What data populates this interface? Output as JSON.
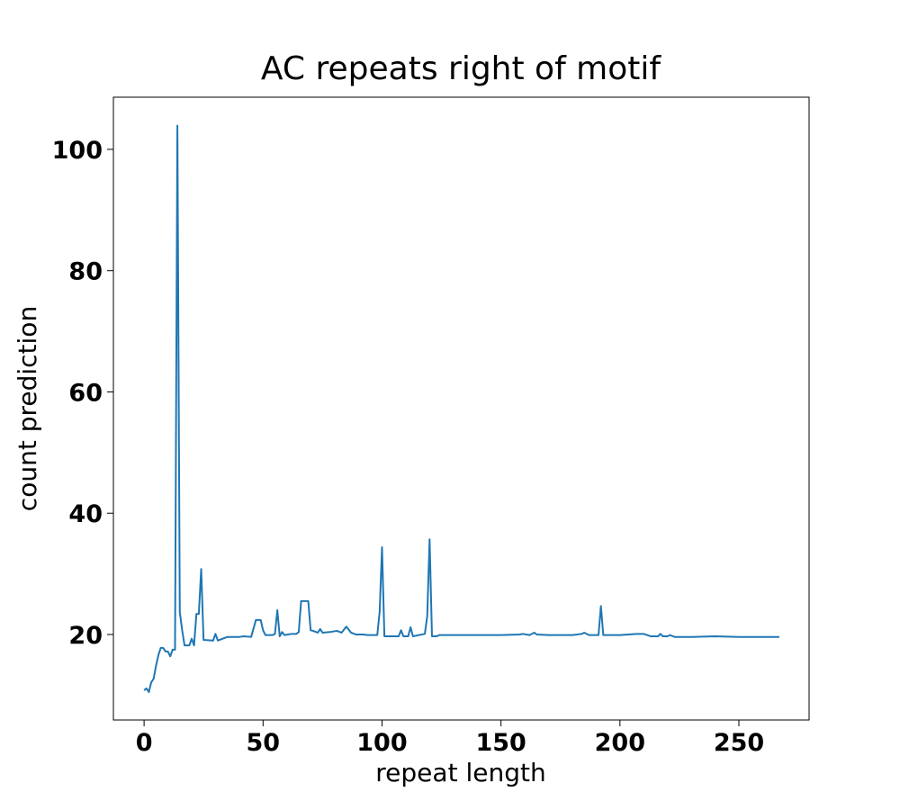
{
  "chart_data": {
    "type": "line",
    "title": "AC repeats right of motif",
    "x_label": "repeat length",
    "y_label": "count prediction",
    "x": [
      0,
      1,
      2,
      3,
      4,
      5,
      6,
      7,
      8,
      9,
      10,
      11,
      12,
      13,
      14,
      15,
      16,
      17,
      18,
      19,
      20,
      21,
      22,
      23,
      24,
      25,
      29,
      30,
      31,
      33,
      35,
      40,
      42,
      45,
      47,
      49,
      50,
      51,
      54,
      55,
      56,
      57,
      58,
      59,
      62,
      64,
      65,
      66,
      69,
      70,
      71,
      73,
      74,
      75,
      78,
      81,
      83,
      85,
      87,
      89,
      92,
      94,
      98,
      99,
      100,
      101,
      107,
      108,
      109,
      111,
      112,
      113,
      118,
      119,
      120,
      121,
      123,
      124,
      130,
      140,
      150,
      158,
      159,
      162,
      164,
      165,
      170,
      180,
      184,
      185,
      187,
      191,
      192,
      193,
      200,
      207,
      210,
      213,
      216,
      217,
      218,
      220,
      221,
      223,
      230,
      240,
      250,
      267
    ],
    "values": [
      10.8,
      11.1,
      10.5,
      12.1,
      12.7,
      14.8,
      16.6,
      17.8,
      17.8,
      17.2,
      17.2,
      16.4,
      17.5,
      17.5,
      103.9,
      23.7,
      20.7,
      18.2,
      18.2,
      18.2,
      19.3,
      18.2,
      23.4,
      23.4,
      30.8,
      19.1,
      19,
      20.1,
      19,
      19.3,
      19.6,
      19.6,
      19.7,
      19.6,
      22.4,
      22.4,
      20.7,
      19.9,
      19.9,
      20.1,
      24,
      19.7,
      20.4,
      19.9,
      20.1,
      20.1,
      20.4,
      25.5,
      25.5,
      20.7,
      20.6,
      20.3,
      20.9,
      20.3,
      20.4,
      20.6,
      20.3,
      21.3,
      20.3,
      20,
      20,
      19.9,
      19.9,
      23.7,
      34.4,
      19.7,
      19.7,
      20.7,
      19.7,
      19.7,
      21.2,
      19.7,
      20.1,
      23,
      35.7,
      19.7,
      19.7,
      19.9,
      19.9,
      19.9,
      19.9,
      20,
      20.1,
      19.9,
      20.3,
      20,
      19.9,
      19.9,
      20.1,
      20.3,
      19.9,
      19.9,
      24.7,
      19.9,
      19.9,
      20.1,
      20.1,
      19.7,
      19.7,
      20.1,
      19.7,
      19.7,
      19.9,
      19.6,
      19.6,
      19.7,
      19.6,
      19.6
    ],
    "color": "#1f77b4",
    "xlim": [
      -12.9,
      279.5
    ],
    "ylim": [
      5.9,
      108.6
    ],
    "xticks": [
      0,
      50,
      100,
      150,
      200,
      250
    ],
    "yticks": [
      20,
      40,
      60,
      80,
      100
    ],
    "grid": false
  }
}
